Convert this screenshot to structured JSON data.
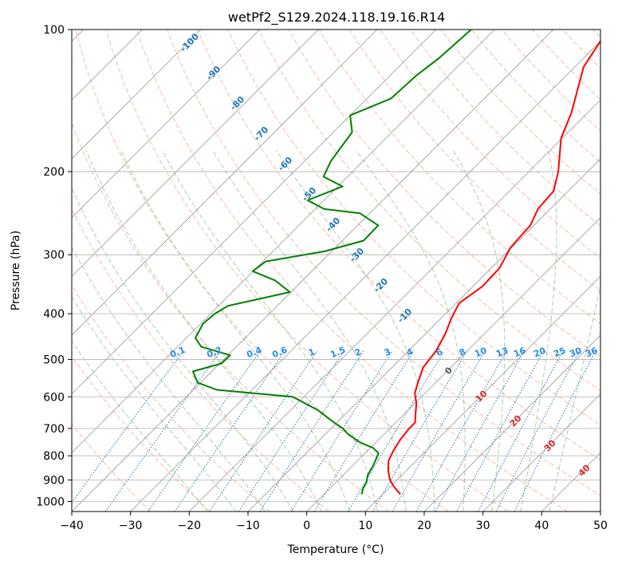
{
  "chart_data": {
    "type": "line",
    "title": "wetPf2_S129.2024.118.19.16.R14",
    "xlabel": "Temperature (°C)",
    "ylabel": "Pressure (hPa)",
    "xlim": [
      -40,
      50
    ],
    "ylim": [
      1050,
      100
    ],
    "y_scale": "log",
    "grid": true,
    "x_ticks": [
      -40,
      -30,
      -20,
      -10,
      0,
      10,
      20,
      30,
      40,
      50
    ],
    "y_ticks": [
      100,
      200,
      300,
      400,
      500,
      600,
      700,
      800,
      900,
      1000
    ],
    "x_tick_labels": [
      "−40",
      "−30",
      "−20",
      "−10",
      "0",
      "10",
      "20",
      "30",
      "40",
      "50"
    ],
    "y_tick_labels": [
      "100",
      "200",
      "300",
      "400",
      "500",
      "600",
      "700",
      "800",
      "900",
      "1000"
    ],
    "series": [
      {
        "color": "#ff0000",
        "pressure": [
          965,
          930,
          900,
          860,
          820,
          780,
          740,
          700,
          680,
          650,
          620,
          590,
          560,
          520,
          480,
          440,
          410,
          380,
          350,
          320,
          290,
          270,
          260,
          240,
          220,
          200,
          170,
          150,
          120,
          100
        ],
        "temperature": [
          13.0,
          10.6,
          8.8,
          6.9,
          5.3,
          4.4,
          3.7,
          3.3,
          3.3,
          1.8,
          0.3,
          -1.7,
          -3.0,
          -4.7,
          -5.3,
          -6.7,
          -8.2,
          -9.5,
          -8.4,
          -8.6,
          -10.2,
          -10.5,
          -10.6,
          -12.1,
          -12.5,
          -15.0,
          -20.2,
          -22.8,
          -28.5,
          -30.7
        ]
      },
      {
        "color": "#008000",
        "pressure": [
          965,
          940,
          910,
          880,
          840,
          810,
          790,
          770,
          750,
          720,
          700,
          680,
          640,
          600,
          580,
          560,
          530,
          510,
          490,
          470,
          450,
          420,
          400,
          385,
          360,
          340,
          325,
          310,
          295,
          280,
          260,
          245,
          240,
          230,
          215,
          205,
          190,
          165,
          152,
          140,
          125,
          115,
          100
        ],
        "temperature": [
          6.4,
          5.7,
          5.2,
          4.2,
          3.5,
          2.8,
          2.3,
          0.5,
          -2.6,
          -6.1,
          -8.0,
          -10.5,
          -15.4,
          -21.9,
          -36.0,
          -40.5,
          -43.2,
          -39.7,
          -39.6,
          -46.0,
          -48.5,
          -49.6,
          -49.3,
          -48.4,
          -40.2,
          -44.7,
          -50.1,
          -49.5,
          -41.2,
          -36.4,
          -36.5,
          -41.7,
          -48.5,
          -52.8,
          -49.2,
          -54.1,
          -55.5,
          -56.8,
          -60.0,
          -55.9,
          -55.5,
          -54.6,
          -54.0
        ]
      }
    ],
    "dry_adiabat_labels": [
      "-100",
      "-90",
      "-80",
      "-70",
      "-60",
      "-50",
      "-40",
      "-30",
      "-20",
      "-10",
      "0",
      "10",
      "20",
      "30",
      "40"
    ],
    "mixing_ratio_labels": [
      "0.1",
      "0.2",
      "0.4",
      "0.6",
      "1",
      "1.5",
      "2",
      "3",
      "4",
      "6",
      "8",
      "10",
      "13",
      "16",
      "20",
      "25",
      "30",
      "36"
    ],
    "colors": {
      "temperature": "#ff0000",
      "dewpoint": "#008000",
      "dry_adiabats": "#f4a582",
      "moist_adiabats": "#8fbf8f",
      "mixing_ratio": "#1f77b4",
      "isotherms": "#999999",
      "label_blue": "#1f77b4",
      "label_mr": "#2b8ce8",
      "label_red": "#d62728",
      "label_gray": "#555555"
    }
  }
}
